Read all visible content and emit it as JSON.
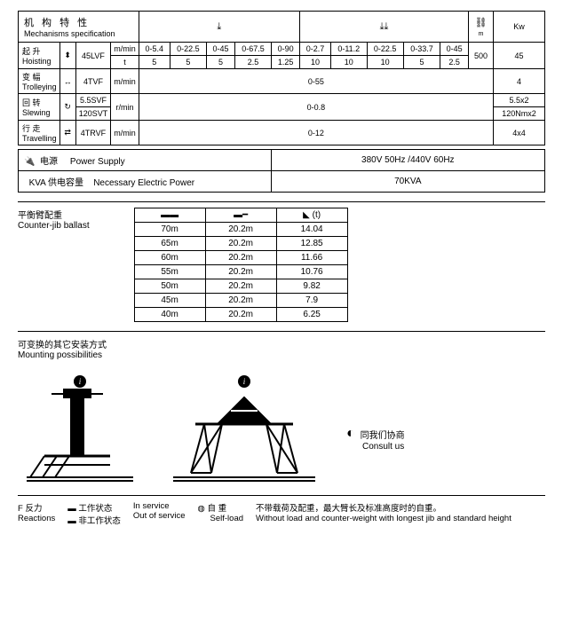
{
  "mech": {
    "title_cn": "机 构 特 性",
    "title_en": "Mechanisms specification",
    "col_hook1": "⤓",
    "col_hook2": "⤓⤓",
    "col_load": "⛓",
    "col_kw": "Kw",
    "hoisting": {
      "cn": "起  升",
      "en": "Hoisting",
      "code": "45LVF",
      "u1": "m/min",
      "u2": "t",
      "r1": [
        "0-5.4",
        "0-22.5",
        "0-45",
        "0-67.5",
        "0-90",
        "0-2.7",
        "0-11.2",
        "0-22.5",
        "0-33.7",
        "0-45"
      ],
      "r2": [
        "5",
        "5",
        "5",
        "2.5",
        "1.25",
        "10",
        "10",
        "10",
        "5",
        "2.5"
      ],
      "load": "500",
      "kw": "45"
    },
    "trolley": {
      "cn": "变  幅",
      "en": "Trolleying",
      "code": "4TVF",
      "unit": "m/min",
      "val": "0-55",
      "kw": "4"
    },
    "slewing": {
      "cn": "回  转",
      "en": "Slewing",
      "code1": "5.5SVF",
      "code2": "120SVT",
      "unit": "r/min",
      "val": "0-0.8",
      "kw1": "5.5x2",
      "kw2": "120Nmx2"
    },
    "travel": {
      "cn": "行  走",
      "en": "Travelling",
      "code": "4TRVF",
      "unit": "m/min",
      "val": "0-12",
      "kw": "4x4"
    }
  },
  "supply": {
    "l1a": "电源",
    "l1b": "Power Supply",
    "v1": "380V 50Hz /440V 60Hz",
    "l2a": "KVA  供电容量",
    "l2b": "Necessary Electric Power",
    "v2": "70KVA"
  },
  "ballast": {
    "title_cn": "平衡臂配重",
    "title_en": "Counter-jib ballast",
    "h1": "▬▬",
    "h2": "▬━",
    "h3": "◣ (t)",
    "rows": [
      [
        "70m",
        "20.2m",
        "14.04"
      ],
      [
        "65m",
        "20.2m",
        "12.85"
      ],
      [
        "60m",
        "20.2m",
        "11.66"
      ],
      [
        "55m",
        "20.2m",
        "10.76"
      ],
      [
        "50m",
        "20.2m",
        "9.82"
      ],
      [
        "45m",
        "20.2m",
        "7.9"
      ],
      [
        "40m",
        "20.2m",
        "6.25"
      ]
    ]
  },
  "mounting": {
    "title_cn": "可变换的其它安装方式",
    "title_en": "Mounting possibilities",
    "consult_cn": "同我们协商",
    "consult_en": "Consult us",
    "bullet": "◐"
  },
  "footer": {
    "f1_cn": "F 反力",
    "f1_en": "Reactions",
    "f2a": "工作状态",
    "f2a_en": "In service",
    "f2b": "非工作状态",
    "f2b_en": "Out of service",
    "f3_cn": "自   重",
    "f3_en": "Self-load",
    "f3sym": "◍",
    "f4_cn": "不带载荷及配重，最大臂长及标准高度时的自重。",
    "f4_en": "Without load and counter-weight with longest jib and standard height",
    "bar": "▬"
  }
}
